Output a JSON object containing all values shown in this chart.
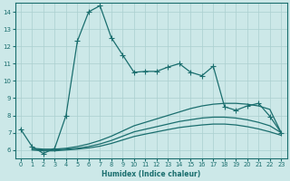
{
  "title": "",
  "xlabel": "Humidex (Indice chaleur)",
  "ylabel": "",
  "bg_color": "#cce8e8",
  "grid_color": "#aacfcf",
  "line_color": "#1a6e6e",
  "xlim": [
    -0.5,
    23.5
  ],
  "ylim": [
    5.5,
    14.5
  ],
  "xticks": [
    0,
    1,
    2,
    3,
    4,
    5,
    6,
    7,
    8,
    9,
    10,
    11,
    12,
    13,
    14,
    15,
    16,
    17,
    18,
    19,
    20,
    21,
    22,
    23
  ],
  "yticks": [
    6,
    7,
    8,
    9,
    10,
    11,
    12,
    13,
    14
  ],
  "line1_x": [
    0,
    1,
    2,
    3,
    4,
    5,
    6,
    7,
    8,
    9,
    10,
    11,
    12,
    13,
    14,
    15,
    16,
    17,
    18,
    19,
    20,
    21,
    22,
    23
  ],
  "line1_y": [
    7.2,
    6.2,
    5.8,
    6.1,
    8.0,
    12.3,
    14.0,
    14.35,
    12.5,
    11.5,
    10.5,
    10.55,
    10.55,
    10.8,
    11.0,
    10.5,
    10.3,
    10.85,
    8.5,
    8.3,
    8.55,
    8.7,
    7.95,
    7.0
  ],
  "line2_x": [
    1,
    2,
    3,
    4,
    5,
    6,
    7,
    8,
    9,
    10,
    11,
    12,
    13,
    14,
    15,
    16,
    17,
    18,
    19,
    20,
    21,
    22,
    23
  ],
  "line2_y": [
    6.1,
    6.05,
    6.05,
    6.1,
    6.2,
    6.35,
    6.55,
    6.8,
    7.1,
    7.4,
    7.6,
    7.8,
    8.0,
    8.2,
    8.4,
    8.55,
    8.65,
    8.7,
    8.7,
    8.65,
    8.55,
    8.35,
    7.0
  ],
  "line3_x": [
    1,
    2,
    3,
    4,
    5,
    6,
    7,
    8,
    9,
    10,
    11,
    12,
    13,
    14,
    15,
    16,
    17,
    18,
    19,
    20,
    21,
    22,
    23
  ],
  "line3_y": [
    6.05,
    6.0,
    6.0,
    6.05,
    6.1,
    6.2,
    6.35,
    6.55,
    6.8,
    7.05,
    7.2,
    7.35,
    7.5,
    7.65,
    7.75,
    7.85,
    7.9,
    7.9,
    7.85,
    7.75,
    7.6,
    7.4,
    7.0
  ],
  "line4_x": [
    1,
    2,
    3,
    4,
    5,
    6,
    7,
    8,
    9,
    10,
    11,
    12,
    13,
    14,
    15,
    16,
    17,
    18,
    19,
    20,
    21,
    22,
    23
  ],
  "line4_y": [
    6.0,
    5.95,
    5.95,
    6.0,
    6.05,
    6.12,
    6.22,
    6.38,
    6.58,
    6.78,
    6.92,
    7.05,
    7.18,
    7.3,
    7.38,
    7.45,
    7.5,
    7.5,
    7.45,
    7.35,
    7.22,
    7.05,
    6.85
  ]
}
